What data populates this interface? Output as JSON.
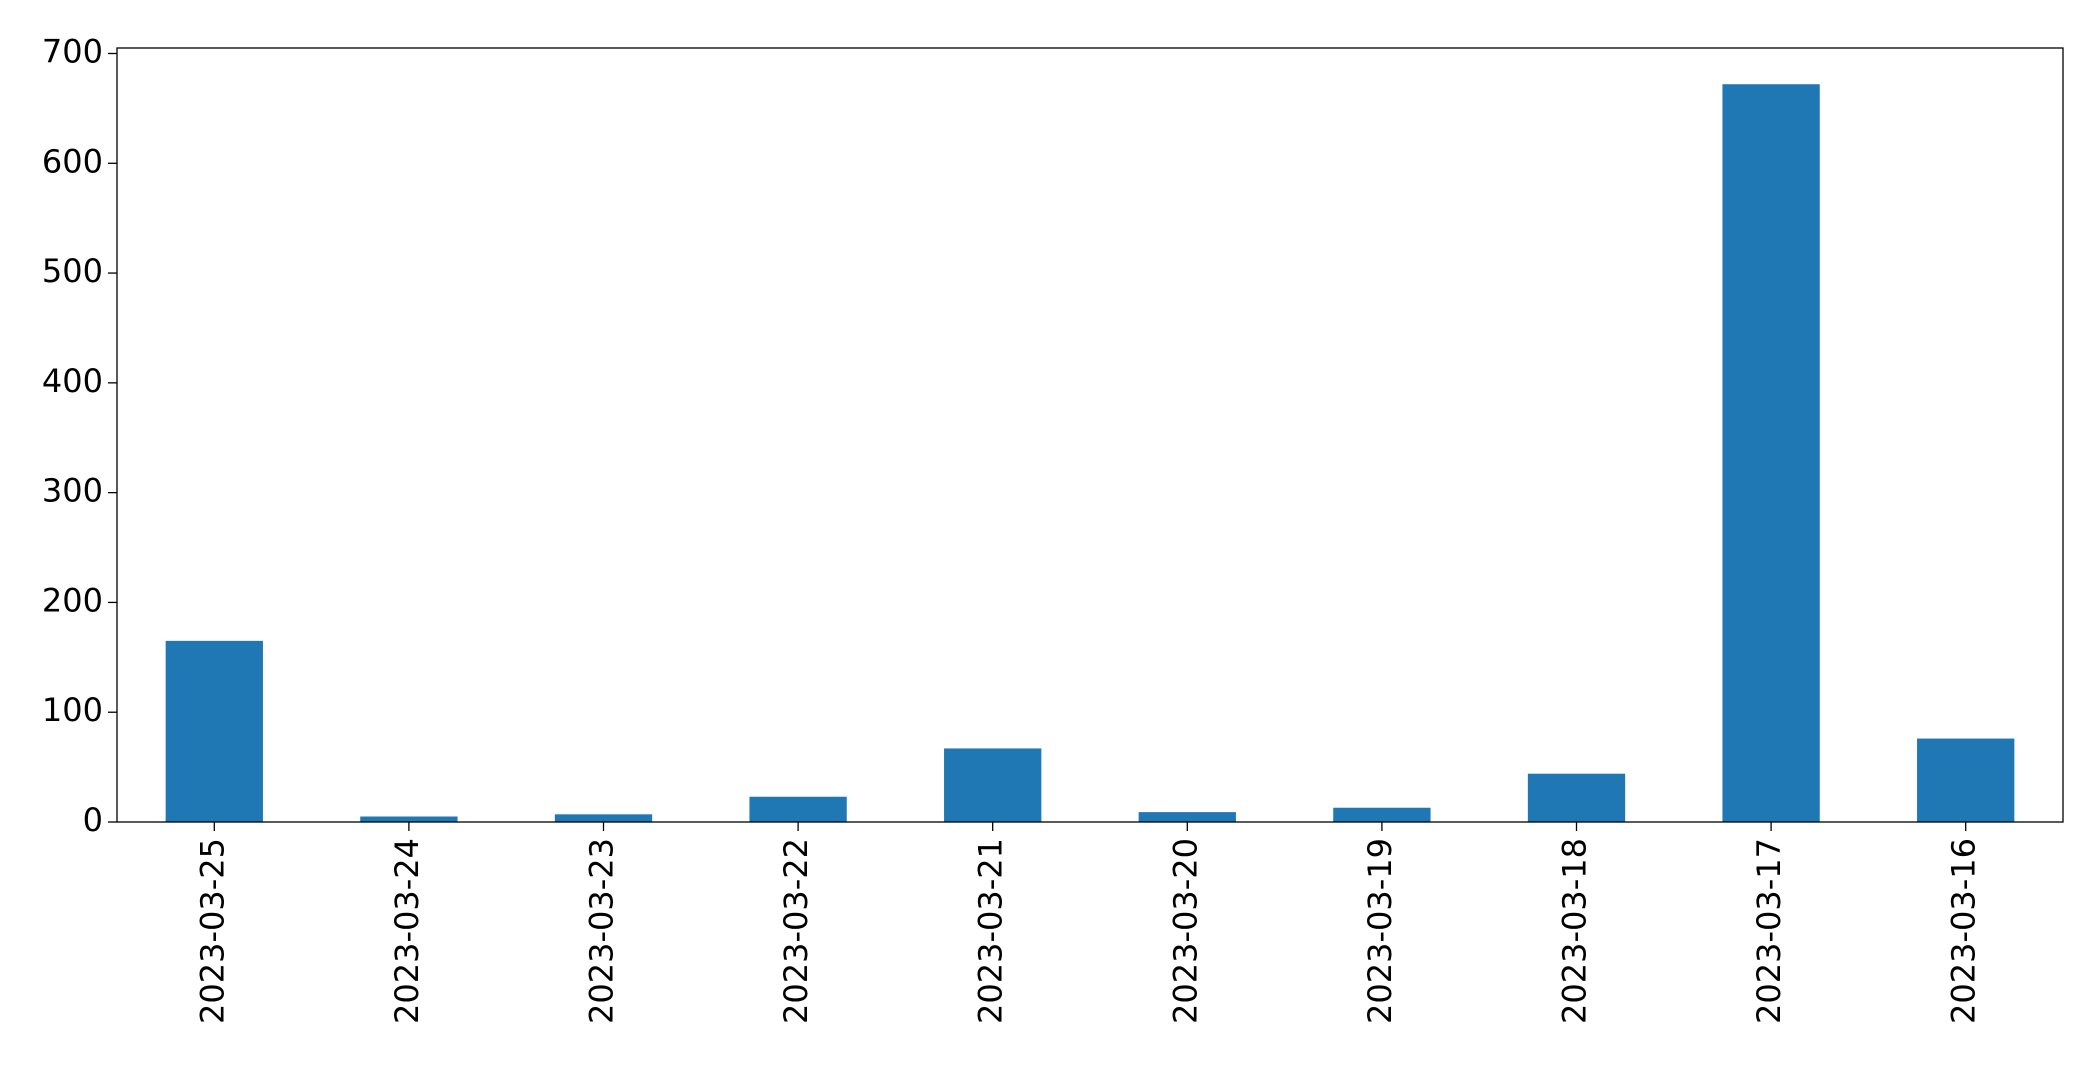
{
  "chart_data": {
    "type": "bar",
    "categories": [
      "2023-03-25",
      "2023-03-24",
      "2023-03-23",
      "2023-03-22",
      "2023-03-21",
      "2023-03-20",
      "2023-03-19",
      "2023-03-18",
      "2023-03-17",
      "2023-03-16"
    ],
    "values": [
      165,
      5,
      7,
      23,
      67,
      9,
      13,
      44,
      672,
      76
    ],
    "color": "#1f77b4",
    "ylim": [
      0,
      705
    ],
    "yticks": [
      0,
      100,
      200,
      300,
      400,
      500,
      600,
      700
    ],
    "grid": false
  }
}
